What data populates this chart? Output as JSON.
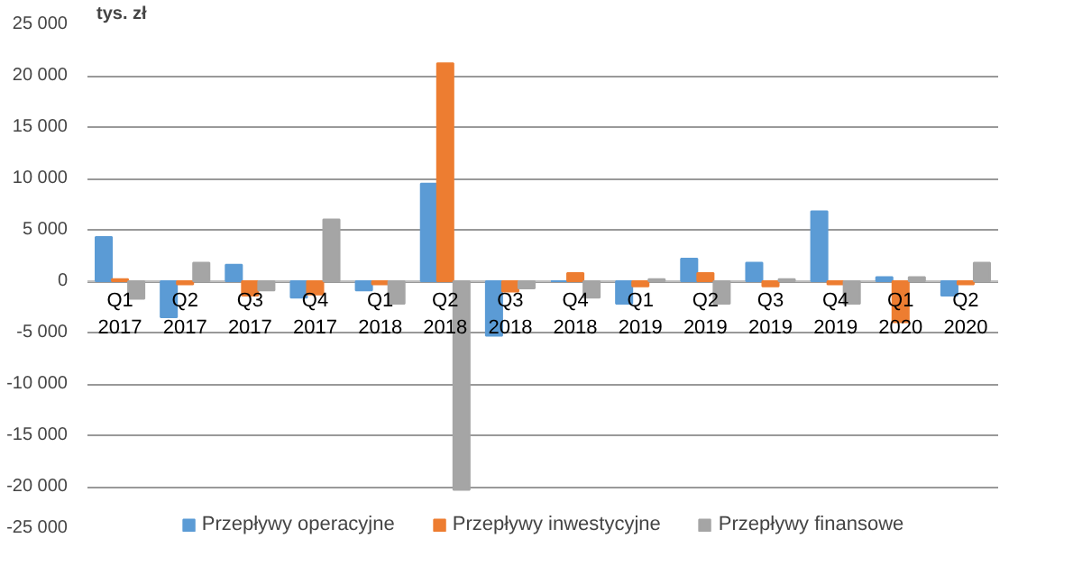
{
  "chart_data": {
    "type": "bar",
    "ylabel": "tys. zł",
    "categories": [
      "Q1\n2017",
      "Q2\n2017",
      "Q3\n2017",
      "Q4\n2017",
      "Q1\n2018",
      "Q2\n2018",
      "Q3\n2018",
      "Q4\n2018",
      "Q1\n2019",
      "Q2\n2019",
      "Q3\n2019",
      "Q4\n2019",
      "Q1\n2020",
      "Q2\n2020"
    ],
    "series": [
      {
        "name": "Przepływy operacyjne",
        "color": "#5b9bd5",
        "values": [
          4300,
          -3500,
          1600,
          -1600,
          -900,
          9500,
          -5300,
          0,
          -2200,
          2200,
          1800,
          6800,
          400,
          -1400
        ]
      },
      {
        "name": "Przepływy inwestycyjne",
        "color": "#ed7d31",
        "values": [
          200,
          -300,
          -1400,
          -1300,
          -300,
          21200,
          -1000,
          800,
          -500,
          800,
          -500,
          -300,
          -4000,
          -300
        ]
      },
      {
        "name": "Przepływy finansowe",
        "color": "#a5a5a5",
        "values": [
          -1700,
          1800,
          -900,
          6000,
          -2200,
          -20300,
          -700,
          -1600,
          200,
          -2200,
          200,
          -2200,
          400,
          1800
        ]
      }
    ],
    "ylim": [
      -25000,
      25000
    ],
    "yticks": [
      {
        "value": -25000,
        "label": "-25 000"
      },
      {
        "value": -20000,
        "label": "-20 000"
      },
      {
        "value": -15000,
        "label": "-15 000"
      },
      {
        "value": -10000,
        "label": "-10 000"
      },
      {
        "value": -5000,
        "label": "-5 000"
      },
      0,
      {
        "value": 5000,
        "label": "5 000"
      },
      {
        "value": 10000,
        "label": "10 000"
      },
      {
        "value": 15000,
        "label": "15 000"
      },
      {
        "value": 20000,
        "label": "20 000"
      },
      {
        "value": 25000,
        "label": "25 000"
      }
    ],
    "grid": "y",
    "legend": "bottom"
  }
}
